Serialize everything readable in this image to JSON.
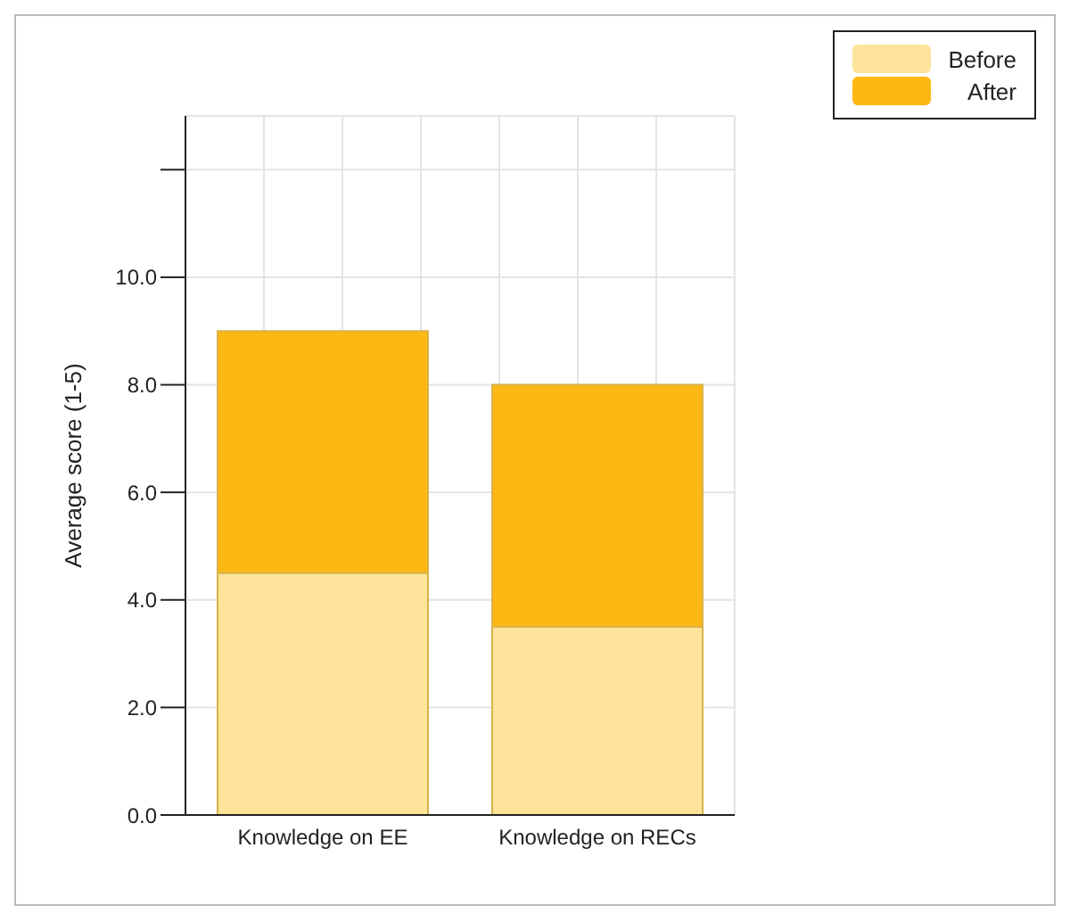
{
  "chart_data": {
    "type": "bar",
    "ylabel": "Average score (1-5)",
    "categories": [
      "Knowledge on EE",
      "Knowledge on RECs"
    ],
    "stacked": true,
    "series": [
      {
        "name": "Before",
        "color": "#fde49a",
        "values": [
          4.5,
          3.5
        ]
      },
      {
        "name": "After",
        "color": "#fdb813",
        "values": [
          4.5,
          4.5
        ]
      }
    ],
    "ylim": [
      0,
      13
    ],
    "yticks": [
      {
        "value": 0,
        "label": "0.0"
      },
      {
        "value": 2,
        "label": "2.0"
      },
      {
        "value": 4,
        "label": "4.0"
      },
      {
        "value": 6,
        "label": "6.0"
      },
      {
        "value": 8,
        "label": "8.0"
      },
      {
        "value": 10,
        "label": "10.0"
      },
      {
        "value": 12,
        "label": null
      }
    ],
    "grid": true,
    "legend": "top right"
  }
}
